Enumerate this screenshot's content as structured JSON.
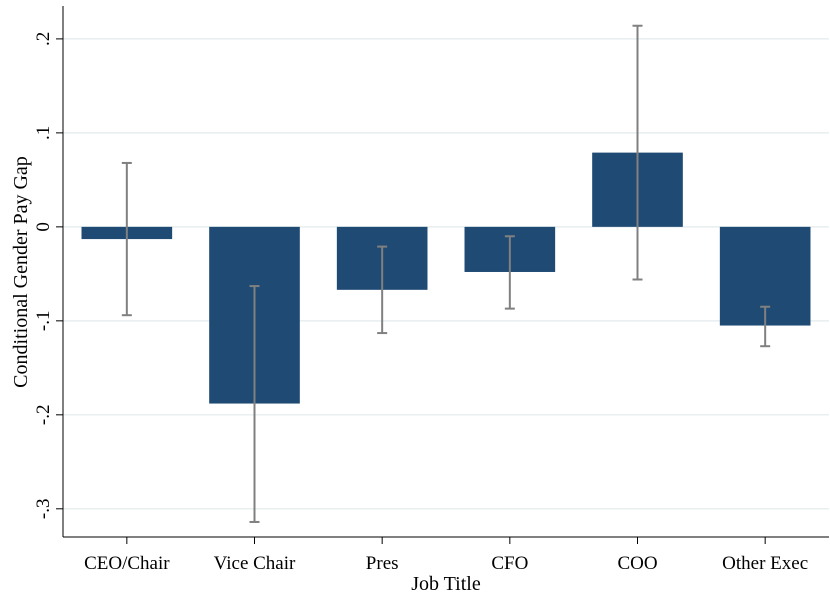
{
  "chart_data": {
    "type": "bar",
    "title": "",
    "xlabel": "Job Title",
    "ylabel": "Conditional Gender Pay Gap",
    "categories": [
      "CEO/Chair",
      "Vice Chair",
      "Pres",
      "CFO",
      "COO",
      "Other Exec"
    ],
    "values": [
      -0.013,
      -0.188,
      -0.067,
      -0.048,
      0.079,
      -0.105
    ],
    "error_low": [
      -0.094,
      -0.314,
      -0.113,
      -0.087,
      -0.056,
      -0.127
    ],
    "error_high": [
      0.068,
      -0.063,
      -0.021,
      -0.01,
      0.214,
      -0.085
    ],
    "ylim": [
      -0.33,
      0.235
    ],
    "yticks": [
      0.2,
      0.1,
      0,
      -0.1,
      -0.2,
      -0.3
    ],
    "ytick_labels": [
      ".2",
      ".1",
      "0",
      "-.1",
      "-.2",
      "-.3"
    ],
    "grid": true,
    "colors": {
      "bar": "#1f4a73",
      "error_bar": "#808080",
      "grid": "#e3eaec"
    }
  }
}
